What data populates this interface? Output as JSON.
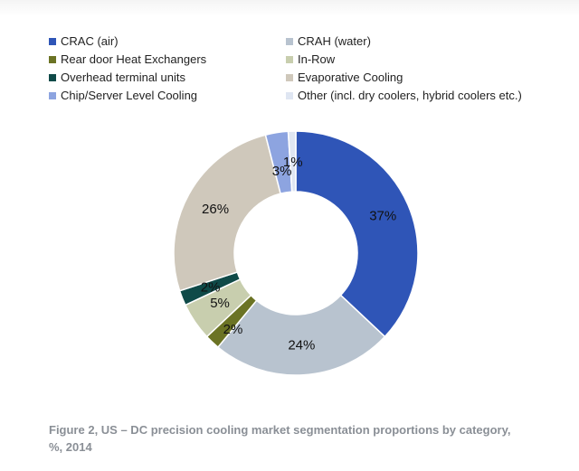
{
  "colors": {
    "crac": "#2f55b7",
    "crah": "#b8c3cf",
    "rear_door": "#6b7324",
    "in_row": "#c8ceae",
    "overhead": "#0f4a48",
    "evaporative": "#cfc8bb",
    "chip": "#8da4e0",
    "other": "#dfe6f2"
  },
  "chart_data": {
    "type": "pie",
    "donut": true,
    "legend": "top",
    "slices": [
      {
        "key": "crac",
        "name": "CRAC (air)",
        "value": 37,
        "label": "37%"
      },
      {
        "key": "crah",
        "name": "CRAH (water)",
        "value": 24,
        "label": "24%"
      },
      {
        "key": "rear_door",
        "name": "Rear door Heat Exchangers",
        "value": 2,
        "label": "2%"
      },
      {
        "key": "in_row",
        "name": "In-Row",
        "value": 5,
        "label": "5%"
      },
      {
        "key": "overhead",
        "name": "Overhead terminal units",
        "value": 2,
        "label": "2%"
      },
      {
        "key": "evaporative",
        "name": "Evaporative Cooling",
        "value": 26,
        "label": "26%"
      },
      {
        "key": "chip",
        "name": "Chip/Server Level Cooling",
        "value": 3,
        "label": "3%"
      },
      {
        "key": "other",
        "name": "Other (incl. dry coolers, hybrid coolers etc.)",
        "value": 1,
        "label": "1%"
      }
    ]
  },
  "caption": "Figure 2, US – DC precision cooling market segmentation proportions by category, %, 2014"
}
